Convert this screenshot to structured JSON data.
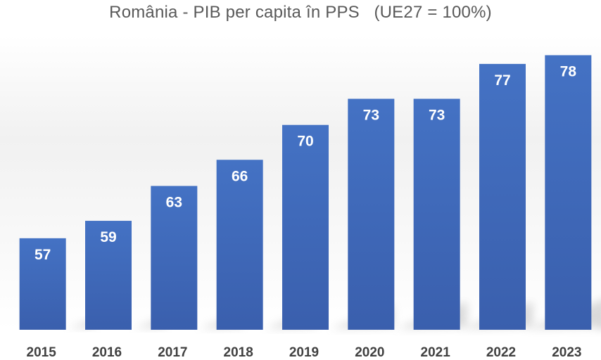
{
  "chart_data": {
    "type": "bar",
    "title": "România - PIB per capita în PPS   (UE27 = 100%)",
    "categories": [
      "2015",
      "2016",
      "2017",
      "2018",
      "2019",
      "2020",
      "2021",
      "2022",
      "2023"
    ],
    "values": [
      57,
      59,
      63,
      66,
      70,
      73,
      73,
      77,
      78
    ],
    "xlabel": "",
    "ylabel": "",
    "ylim": [
      40,
      80
    ],
    "grid": false,
    "legend": "none",
    "colors": {
      "bar_top": "#4472C4",
      "bar_bottom": "#3A5FAD",
      "bar_label": "#FFFFFF",
      "tick_label": "#404040",
      "title": "#595959"
    }
  }
}
